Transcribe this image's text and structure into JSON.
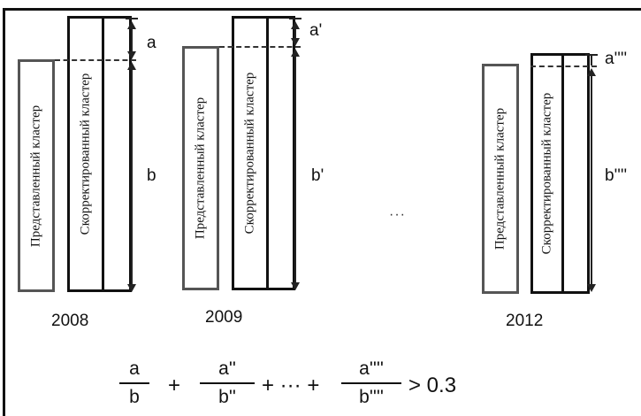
{
  "labels": {
    "presented": "Представленный кластер",
    "corrected": "Скорректированный кластер"
  },
  "groups": [
    {
      "year": "2008",
      "a": "a",
      "b": "b"
    },
    {
      "year": "2009",
      "a": "a'",
      "b": "b'"
    },
    {
      "year": "2012",
      "a": "a''''",
      "b": "b''''"
    }
  ],
  "ellipsis": "···",
  "formula": {
    "terms": [
      {
        "num": "a",
        "den": "b"
      },
      {
        "num": "a''",
        "den": "b''"
      },
      {
        "num": "a''''",
        "den": "b''''"
      }
    ],
    "plus": "+",
    "middle": "+ ··· +",
    "rhs": "> 0.3"
  }
}
